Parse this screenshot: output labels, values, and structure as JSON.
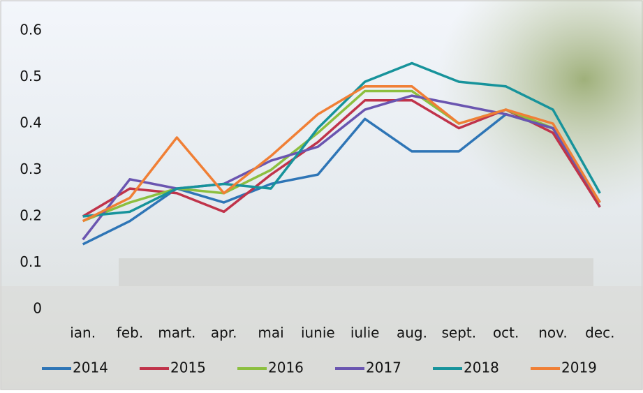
{
  "chart_data": {
    "type": "line",
    "categories": [
      "ian.",
      "feb.",
      "mart.",
      "apr.",
      "mai",
      "iunie",
      "iulie",
      "aug.",
      "sept.",
      "oct.",
      "nov.",
      "dec."
    ],
    "series": [
      {
        "name": "2014",
        "color": "#2e75b6",
        "values": [
          0.14,
          0.19,
          0.26,
          0.23,
          0.27,
          0.29,
          0.41,
          0.34,
          0.34,
          0.42,
          0.39,
          0.22
        ]
      },
      {
        "name": "2015",
        "color": "#c0334a",
        "values": [
          0.2,
          0.26,
          0.25,
          0.21,
          0.29,
          0.36,
          0.45,
          0.45,
          0.39,
          0.43,
          0.38,
          0.22
        ]
      },
      {
        "name": "2016",
        "color": "#8cbf3f",
        "values": [
          0.19,
          0.23,
          0.26,
          0.25,
          0.3,
          0.38,
          0.47,
          0.47,
          0.4,
          0.43,
          0.39,
          0.23
        ]
      },
      {
        "name": "2017",
        "color": "#6a55b0",
        "values": [
          0.15,
          0.28,
          0.26,
          0.27,
          0.32,
          0.35,
          0.43,
          0.46,
          0.44,
          0.42,
          0.39,
          0.23
        ]
      },
      {
        "name": "2018",
        "color": "#17939b",
        "values": [
          0.2,
          0.21,
          0.26,
          0.27,
          0.26,
          0.39,
          0.49,
          0.53,
          0.49,
          0.48,
          0.43,
          0.25
        ]
      },
      {
        "name": "2019",
        "color": "#f07f35",
        "values": [
          0.19,
          0.24,
          0.37,
          0.25,
          0.33,
          0.42,
          0.48,
          0.48,
          0.4,
          0.43,
          0.4,
          0.23
        ]
      }
    ],
    "ylim": [
      0,
      0.6
    ],
    "yticks": [
      0,
      0.1,
      0.2,
      0.3,
      0.4,
      0.5,
      0.6
    ],
    "grid": false,
    "legend": "bottom"
  }
}
